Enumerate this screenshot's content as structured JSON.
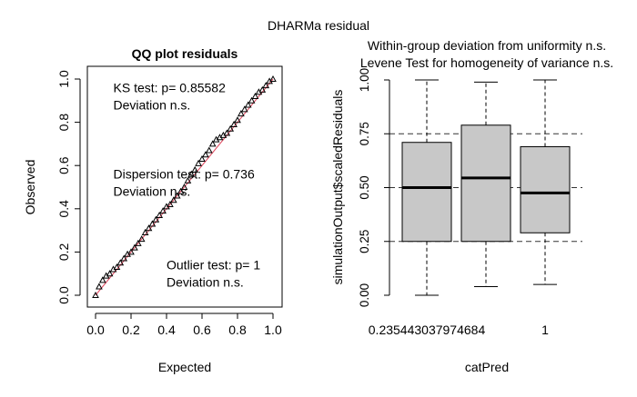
{
  "figure": {
    "title": "DHARMa residual"
  },
  "chart_data": [
    {
      "type": "scatter",
      "title": "QQ plot residuals",
      "xlabel": "Expected",
      "ylabel": "Observed",
      "xlim": [
        0,
        1
      ],
      "ylim": [
        0,
        1
      ],
      "xticks": [
        "0.0",
        "0.2",
        "0.4",
        "0.6",
        "0.8",
        "1.0"
      ],
      "yticks": [
        "0.0",
        "0.2",
        "0.4",
        "0.6",
        "0.8",
        "1.0"
      ],
      "reference_line": {
        "x": [
          0,
          1
        ],
        "y": [
          0,
          1
        ],
        "color": "#e0455c"
      },
      "points_color": "#000000",
      "points": {
        "x": [
          0.0,
          0.02,
          0.04,
          0.06,
          0.08,
          0.1,
          0.12,
          0.14,
          0.16,
          0.18,
          0.2,
          0.22,
          0.24,
          0.26,
          0.28,
          0.3,
          0.32,
          0.34,
          0.36,
          0.38,
          0.4,
          0.42,
          0.44,
          0.46,
          0.48,
          0.5,
          0.52,
          0.54,
          0.56,
          0.58,
          0.6,
          0.62,
          0.64,
          0.66,
          0.68,
          0.7,
          0.72,
          0.74,
          0.76,
          0.78,
          0.8,
          0.82,
          0.84,
          0.86,
          0.88,
          0.9,
          0.92,
          0.94,
          0.96,
          0.98,
          1.0
        ],
        "y": [
          0.0,
          0.04,
          0.07,
          0.09,
          0.1,
          0.12,
          0.13,
          0.15,
          0.17,
          0.19,
          0.2,
          0.22,
          0.24,
          0.26,
          0.29,
          0.31,
          0.33,
          0.35,
          0.37,
          0.39,
          0.41,
          0.42,
          0.44,
          0.46,
          0.48,
          0.5,
          0.53,
          0.56,
          0.58,
          0.61,
          0.63,
          0.65,
          0.67,
          0.7,
          0.72,
          0.73,
          0.74,
          0.75,
          0.77,
          0.79,
          0.81,
          0.84,
          0.86,
          0.88,
          0.9,
          0.92,
          0.94,
          0.95,
          0.97,
          0.99,
          1.0
        ]
      },
      "annotations": [
        {
          "lines": [
            "KS test: p= 0.85582",
            "Deviation  n.s."
          ],
          "x": 0.1,
          "y": 0.94
        },
        {
          "lines": [
            "Dispersion test: p= 0.736",
            "Deviation  n.s."
          ],
          "x": 0.1,
          "y": 0.54
        },
        {
          "lines": [
            "Outlier test: p= 1",
            "Deviation  n.s."
          ],
          "x": 0.4,
          "y": 0.12
        }
      ]
    },
    {
      "type": "box",
      "title": [
        "Within-group deviation from uniformity n.s.",
        "Levene Test for homogeneity of variance n.s."
      ],
      "xlabel": "catPred",
      "ylabel": "simulationOutput$scaledResiduals",
      "ylim": [
        0,
        1
      ],
      "yticks": [
        "0.00",
        "0.25",
        "0.50",
        "0.75",
        "1.00"
      ],
      "reference_lines": [
        0.25,
        0.5,
        0.75
      ],
      "x_tick_labels": [
        "0.235443037974684",
        "",
        "1"
      ],
      "box_fill": "#c8c8c8",
      "boxes": [
        {
          "min": 0.0,
          "q1": 0.25,
          "median": 0.5,
          "q3": 0.71,
          "max": 1.0
        },
        {
          "min": 0.04,
          "q1": 0.25,
          "median": 0.545,
          "q3": 0.79,
          "max": 0.99
        },
        {
          "min": 0.05,
          "q1": 0.29,
          "median": 0.475,
          "q3": 0.69,
          "max": 1.0
        }
      ]
    }
  ]
}
